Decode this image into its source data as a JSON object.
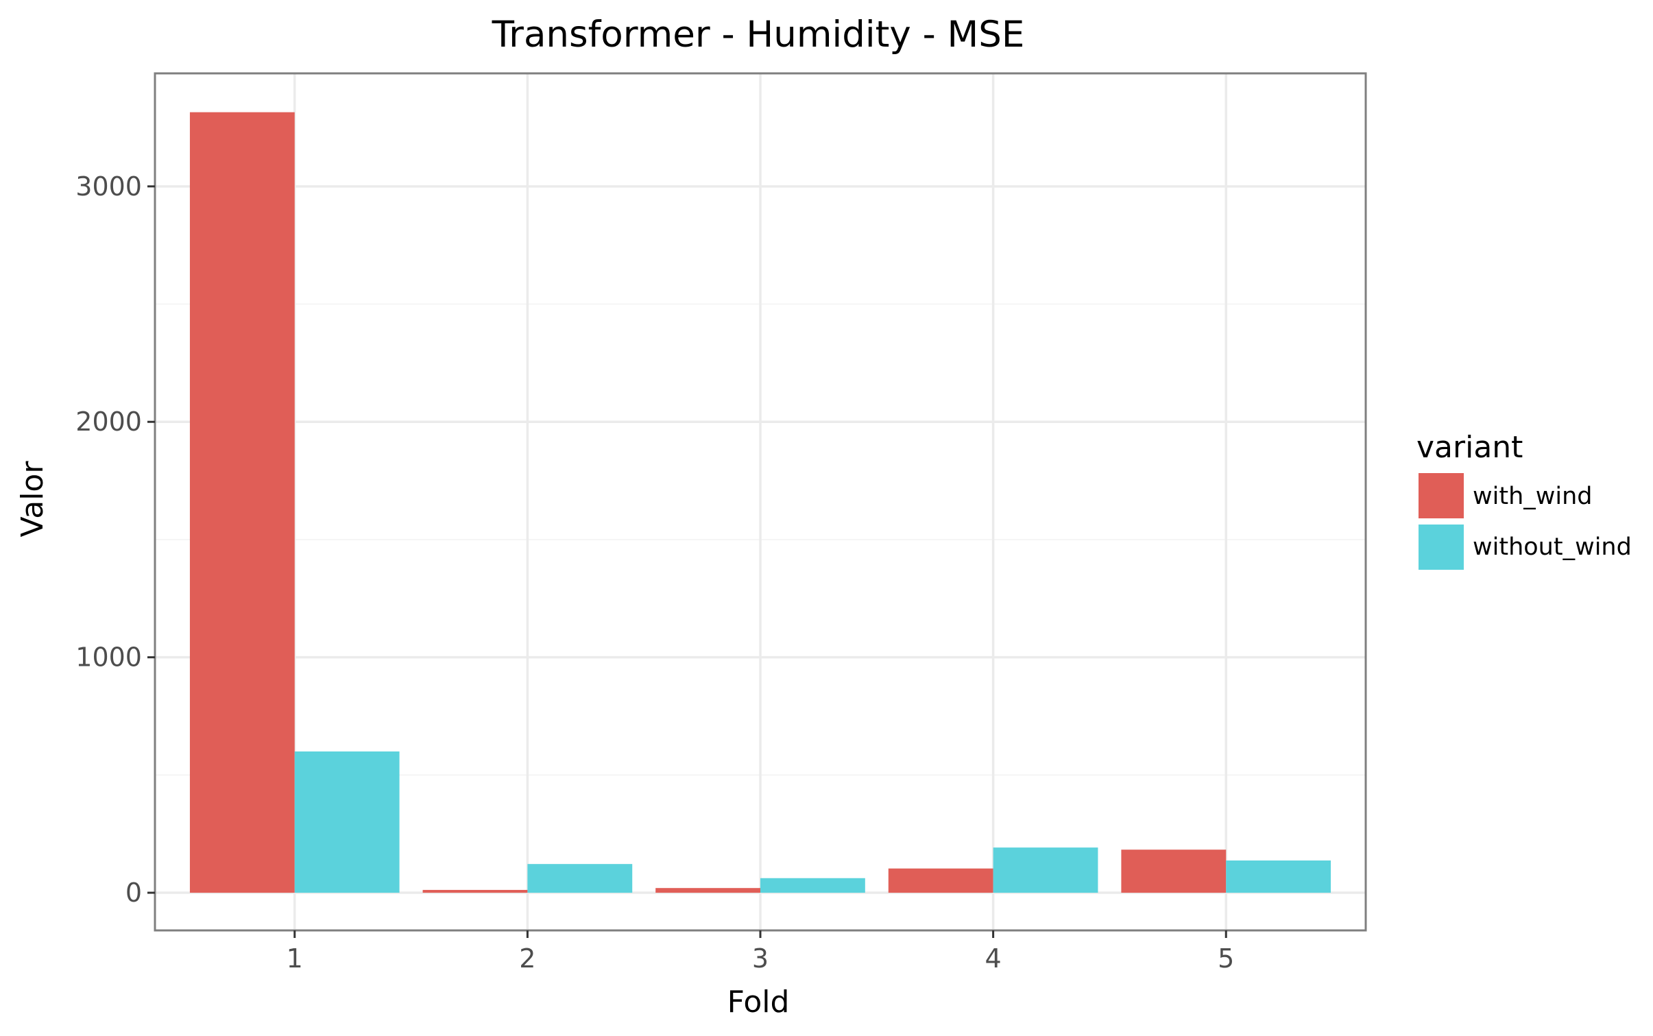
{
  "chart_data": {
    "type": "bar",
    "title": "Transformer - Humidity - MSE",
    "xlabel": "Fold",
    "ylabel": "Valor",
    "categories": [
      "1",
      "2",
      "3",
      "4",
      "5"
    ],
    "series": [
      {
        "name": "with_wind",
        "color": "#e05e57",
        "values": [
          3315,
          12,
          20,
          103,
          183
        ]
      },
      {
        "name": "without_wind",
        "color": "#5bd2dc",
        "values": [
          600,
          122,
          62,
          192,
          137
        ]
      }
    ],
    "ylim": [
      -160,
      3480
    ],
    "yticks": [
      0,
      1000,
      2000,
      3000
    ],
    "legend": {
      "title": "variant",
      "position": "right"
    },
    "grid": true,
    "panel_border_color": "#7f7f7f",
    "grid_color": "#ebebeb"
  }
}
